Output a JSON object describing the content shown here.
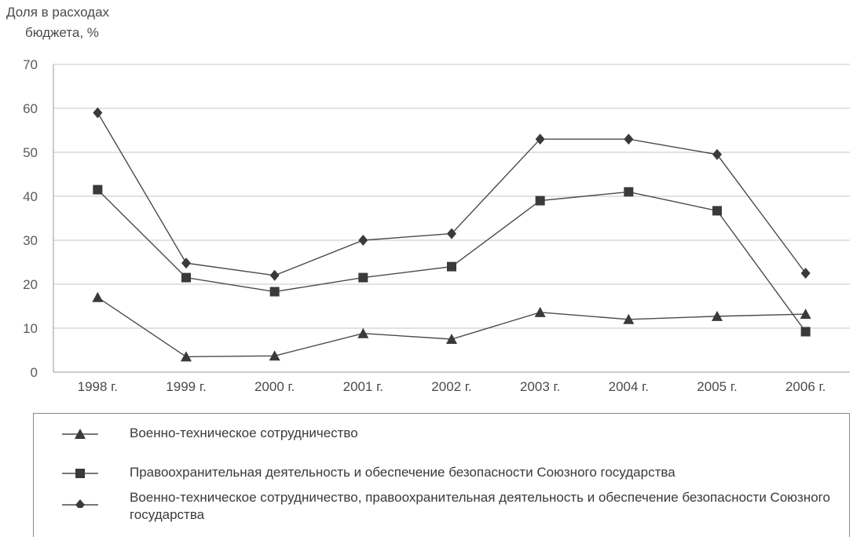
{
  "y_axis_title": [
    "Доля в расходах",
    "бюджета,  %"
  ],
  "colors": {
    "line": "#4a4a4a",
    "grid": "#c4c4c4",
    "axis": "#9a9a9a",
    "marker": "#3a3a3a"
  },
  "chart_data": {
    "type": "line",
    "ylabel": "Доля в расходах бюджета,  %",
    "ylim": [
      0,
      70
    ],
    "yticks": [
      "0",
      "10",
      "20",
      "30",
      "40",
      "50",
      "60",
      "70"
    ],
    "categories": [
      "1998 г.",
      "1999 г.",
      "2000 г.",
      "2001 г.",
      "2002 г.",
      "2003 г.",
      "2004 г.",
      "2005 г.",
      "2006 г."
    ],
    "grid": true,
    "legend_position": "bottom",
    "series": [
      {
        "name": "Военно-техническое сотрудничество",
        "marker": "triangle",
        "values": [
          17,
          3.5,
          3.7,
          8.8,
          7.5,
          13.6,
          12,
          12.7,
          13.2
        ]
      },
      {
        "name": "Правоохранительная деятельность и обеспечение безопасности Союзного государства",
        "marker": "square",
        "values": [
          41.5,
          21.5,
          18.3,
          21.5,
          24,
          39,
          41,
          36.7,
          9.2
        ]
      },
      {
        "name": "Военно-техническое сотрудничество, правоохранительная деятельность и обеспечение безопасности Союзного государства",
        "marker": "diamond",
        "values": [
          59,
          24.8,
          22,
          30,
          31.5,
          53,
          53,
          49.5,
          22.5
        ]
      }
    ]
  }
}
